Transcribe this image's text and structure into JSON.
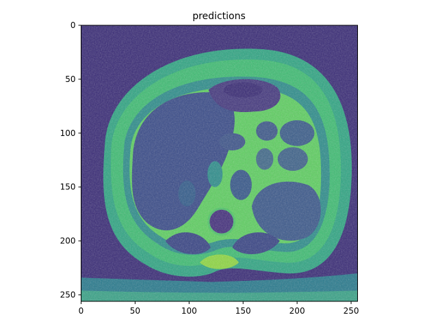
{
  "chart_data": {
    "type": "heatmap",
    "title": "predictions",
    "xlabel": "",
    "ylabel": "",
    "image_shape": [
      256,
      256
    ],
    "colormap": "viridis",
    "xlim": [
      0,
      256
    ],
    "ylim": [
      256,
      0
    ],
    "x_ticks": [
      0,
      50,
      100,
      150,
      200,
      250
    ],
    "y_ticks": [
      0,
      50,
      100,
      150,
      200,
      250
    ],
    "x_tick_labels": [
      "0",
      "50",
      "100",
      "150",
      "200",
      "250"
    ],
    "y_tick_labels": [
      "0",
      "50",
      "100",
      "150",
      "200",
      "250"
    ],
    "content": "axial abdominal CT slice",
    "colors": {
      "background": "#3b2d78",
      "low": "#46327e",
      "mid": "#277f8e",
      "high": "#35b779",
      "peak": "#8fd744"
    }
  }
}
